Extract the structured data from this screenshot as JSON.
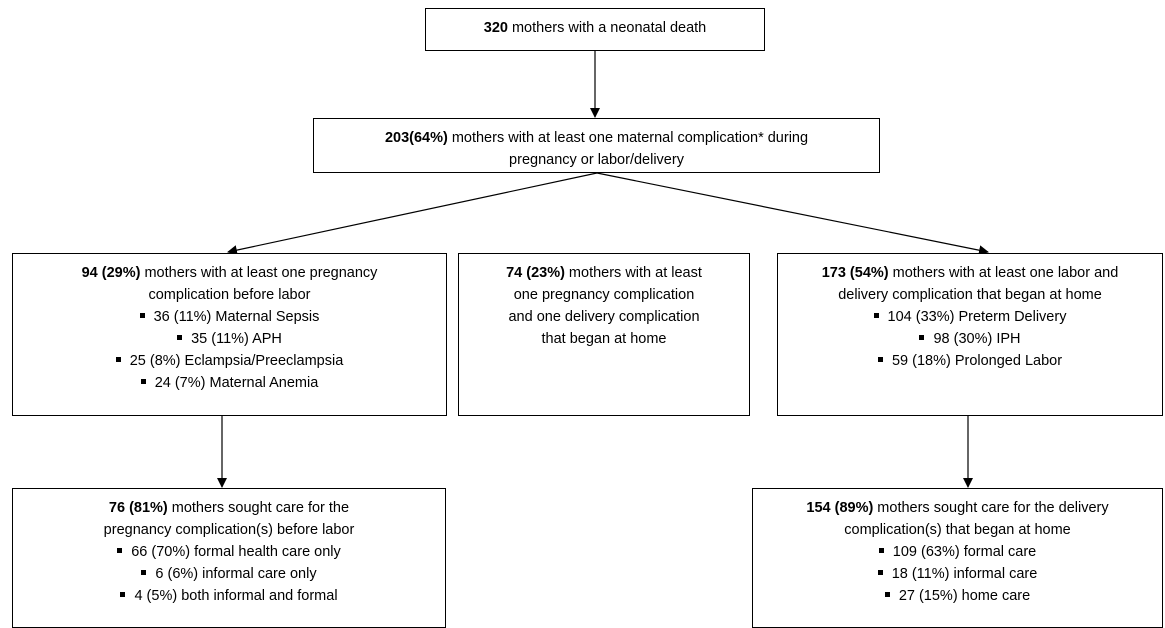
{
  "nodes": [
    {
      "lead": "320",
      "lines": [
        "mothers with a neonatal death"
      ],
      "items": []
    },
    {
      "lead": "203(64%)",
      "lines": [
        "mothers with at least one maternal complication* during",
        "pregnancy or labor/delivery"
      ],
      "items": []
    },
    {
      "lead": "94 (29%)",
      "lines": [
        "mothers with at least one pregnancy",
        "complication before labor"
      ],
      "items": [
        "36 (11%) Maternal Sepsis",
        "35 (11%) APH",
        "25 (8%) Eclampsia/Preeclampsia",
        "24 (7%) Maternal Anemia"
      ]
    },
    {
      "lead": "74 (23%)",
      "lines": [
        "mothers with at least",
        "one pregnancy complication",
        "and one delivery complication",
        "that began at home"
      ],
      "items": []
    },
    {
      "lead": "173 (54%)",
      "lines": [
        "mothers with at least one labor and",
        "delivery complication that began at home"
      ],
      "items": [
        "104 (33%) Preterm Delivery",
        "98 (30%) IPH",
        "59 (18%) Prolonged Labor"
      ]
    },
    {
      "lead": "76 (81%)",
      "lines": [
        "mothers sought care for the",
        "pregnancy complication(s) before labor"
      ],
      "items": [
        "66 (70%) formal health care only",
        "6 (6%) informal care only",
        "4 (5%) both informal and formal"
      ]
    },
    {
      "lead": "154 (89%)",
      "lines": [
        "mothers sought care for the delivery",
        "complication(s) that began at home"
      ],
      "items": [
        "109 (63%) formal care",
        "18 (11%) informal care",
        "27 (15%) home care"
      ]
    }
  ]
}
